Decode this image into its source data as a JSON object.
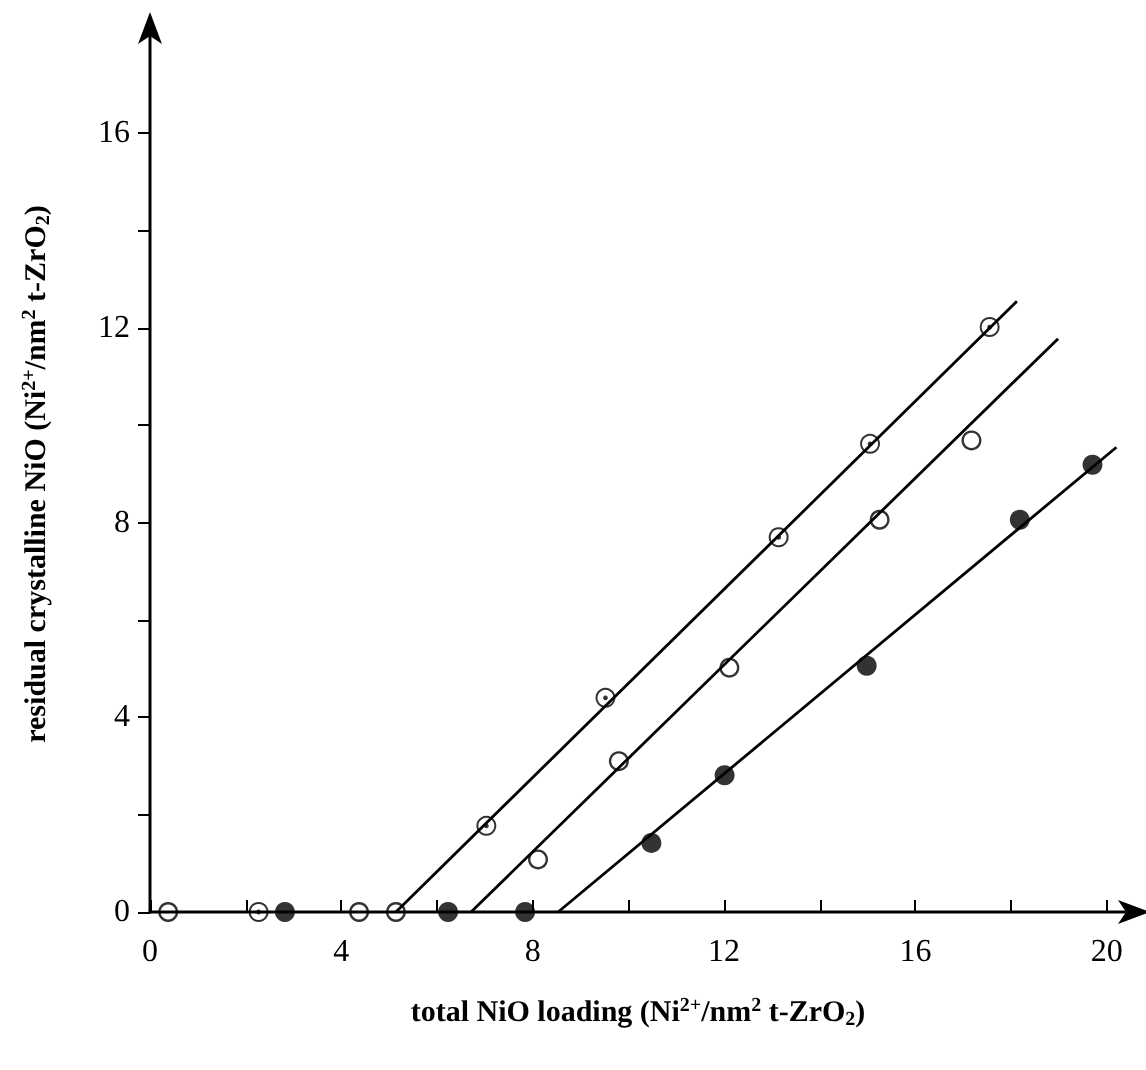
{
  "chart_data": {
    "type": "scatter",
    "xlabel": "total NiO loading (Ni$^{2+}$/nm$^{2}$ t-ZrO$_{2}$)",
    "ylabel": "residual crystalline NiO (Ni$^{2+}$/nm$^{2}$ t-ZrO$_{2}$)",
    "xlim": [
      0,
      20.4
    ],
    "xticks": [
      0,
      {
        "value": 2,
        "label": null
      },
      4,
      {
        "value": 6,
        "label": null
      },
      8,
      {
        "value": 10,
        "label": null
      },
      12,
      {
        "value": 14,
        "label": null
      },
      16,
      {
        "value": 18,
        "label": null
      },
      20
    ],
    "ylim": [
      0,
      18
    ],
    "yticks": [
      0,
      {
        "value": 2,
        "label": null
      },
      4,
      {
        "value": 6,
        "label": null
      },
      8,
      {
        "value": 10,
        "label": null
      },
      12,
      {
        "value": 14,
        "label": null
      },
      16
    ],
    "grid": false,
    "series": [
      {
        "marker": "dotted_circle",
        "color": "#000000",
        "x": [
          2.27,
          7.03,
          9.52,
          13.14,
          15.05,
          17.55
        ],
        "values": [
          0,
          1.77,
          4.4,
          7.7,
          9.62,
          12.02
        ]
      },
      {
        "marker": "open_circle",
        "color": "#000000",
        "x": [
          0.38,
          4.37,
          5.14,
          8.11,
          9.8,
          12.11,
          15.25,
          17.17
        ],
        "values": [
          0,
          0,
          0,
          1.08,
          3.1,
          5.02,
          8.06,
          9.69
        ]
      },
      {
        "marker": "circle",
        "color": "#000000",
        "x": [
          2.82,
          6.23,
          7.84,
          10.48,
          12.01,
          14.98,
          18.18,
          19.7
        ],
        "values": [
          0,
          0,
          0,
          1.42,
          2.81,
          5.06,
          8.06,
          9.19
        ]
      },
      {
        "type": "line",
        "marker": "none",
        "line_style": "solid",
        "color": "#000000",
        "x": [
          5.14,
          18.12
        ],
        "values": [
          0,
          12.55
        ]
      },
      {
        "type": "line",
        "marker": "none",
        "line_style": "solid",
        "color": "#000000",
        "x": [
          6.71,
          18.98
        ],
        "values": [
          0,
          11.78
        ]
      },
      {
        "type": "line",
        "marker": "none",
        "line_style": "solid",
        "color": "#000000",
        "x": [
          8.53,
          20.2
        ],
        "values": [
          0,
          9.55
        ]
      }
    ]
  }
}
